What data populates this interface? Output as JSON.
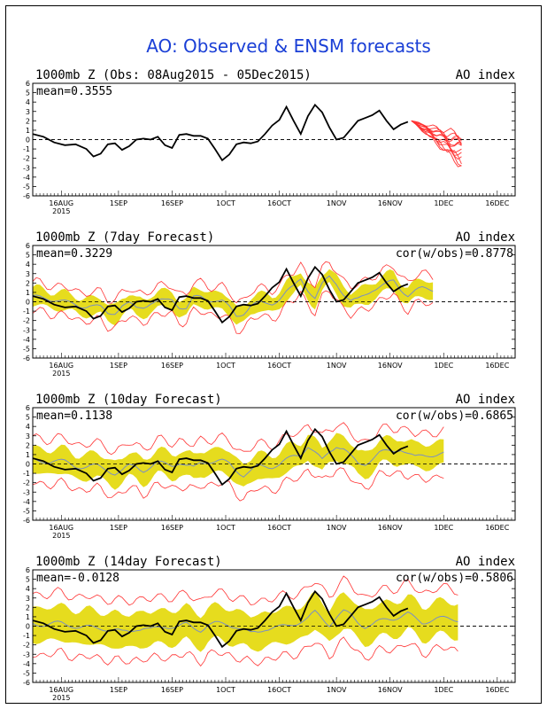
{
  "main_title": "AO: Observed & ENSM forecasts",
  "colors": {
    "title": "#1a3fd6",
    "observed": "#000000",
    "ensemble_members": "#ff3333",
    "ensemble_spread": "#e6dc1e",
    "ensemble_mean": "#7a8fc4"
  },
  "chart_data": [
    {
      "type": "line",
      "title": "1000mb Z (Obs: 08Aug2015 - 05Dec2015)",
      "right_label": "AO index",
      "stat_label": "mean=0.3555",
      "cor_label": "",
      "x_ticks": [
        "16AUG",
        "1SEP",
        "16SEP",
        "1OCT",
        "16OCT",
        "1NOV",
        "16NOV",
        "1DEC",
        "16DEC"
      ],
      "x_year_label": "2015",
      "y_ticks": [
        "6",
        "5",
        "4",
        "3",
        "2",
        "1",
        "0",
        "-1",
        "-2",
        "-3",
        "-4",
        "-5",
        "-6"
      ],
      "ylim": [
        -6,
        6
      ],
      "observed": [
        [
          0,
          0.6
        ],
        [
          3,
          0.3
        ],
        [
          6,
          -0.3
        ],
        [
          9,
          -0.6
        ],
        [
          12,
          -0.5
        ],
        [
          15,
          -1.0
        ],
        [
          17,
          -1.8
        ],
        [
          19,
          -1.5
        ],
        [
          21,
          -0.5
        ],
        [
          23,
          -0.4
        ],
        [
          25,
          -1.1
        ],
        [
          27,
          -0.7
        ],
        [
          29,
          0.0
        ],
        [
          31,
          0.1
        ],
        [
          33,
          0.0
        ],
        [
          35,
          0.3
        ],
        [
          37,
          -0.6
        ],
        [
          39,
          -0.9
        ],
        [
          41,
          0.5
        ],
        [
          43,
          0.6
        ],
        [
          45,
          0.4
        ],
        [
          47,
          0.4
        ],
        [
          49,
          0.1
        ],
        [
          51,
          -1.0
        ],
        [
          53,
          -2.2
        ],
        [
          55,
          -1.6
        ],
        [
          57,
          -0.5
        ],
        [
          59,
          -0.3
        ],
        [
          61,
          -0.4
        ],
        [
          63,
          -0.2
        ],
        [
          65,
          0.6
        ],
        [
          67,
          1.5
        ],
        [
          69,
          2.1
        ],
        [
          71,
          3.5
        ],
        [
          73,
          2.0
        ],
        [
          75,
          0.6
        ],
        [
          77,
          2.5
        ],
        [
          79,
          3.7
        ],
        [
          81,
          2.9
        ],
        [
          83,
          1.3
        ],
        [
          85,
          0.0
        ],
        [
          87,
          0.2
        ],
        [
          89,
          1.1
        ],
        [
          91,
          2.0
        ],
        [
          93,
          2.3
        ],
        [
          95,
          2.6
        ],
        [
          97,
          3.1
        ],
        [
          99,
          2.0
        ],
        [
          101,
          1.1
        ],
        [
          103,
          1.6
        ],
        [
          105,
          1.9
        ]
      ],
      "ens_start_day": 106,
      "ens_end_day": 120,
      "ens_start_value": 2.0,
      "ens_members_end_values": [
        -2.5,
        -2.0,
        -1.5,
        -1.0,
        -0.5,
        0.0,
        0.5,
        -2.8,
        -1.8,
        -0.8,
        -0.2,
        -2.2
      ]
    },
    {
      "type": "line",
      "title": "1000mb Z (7day Forecast)",
      "right_label": "AO index",
      "stat_label": "mean=0.3229",
      "cor_label": "cor(w/obs)=0.8778",
      "x_ticks": [
        "16AUG",
        "1SEP",
        "16SEP",
        "1OCT",
        "16OCT",
        "1NOV",
        "16NOV",
        "1DEC",
        "16DEC"
      ],
      "x_year_label": "2015",
      "y_ticks": [
        "6",
        "5",
        "4",
        "3",
        "2",
        "1",
        "0",
        "-1",
        "-2",
        "-3",
        "-4",
        "-5",
        "-6"
      ],
      "ylim": [
        -6,
        6
      ],
      "forecast_end_day": 112,
      "mean_ends_day": 112,
      "spread_half_width": 0.9,
      "outer_half_width": 1.5
    },
    {
      "type": "line",
      "title": "1000mb Z (10day Forecast)",
      "right_label": "AO index",
      "stat_label": "mean=0.1138",
      "cor_label": "cor(w/obs)=0.6865",
      "x_ticks": [
        "16AUG",
        "1SEP",
        "16SEP",
        "1OCT",
        "16OCT",
        "1NOV",
        "16NOV",
        "1DEC",
        "16DEC"
      ],
      "x_year_label": "2015",
      "y_ticks": [
        "6",
        "5",
        "4",
        "3",
        "2",
        "1",
        "0",
        "-1",
        "-2",
        "-3",
        "-4",
        "-5",
        "-6"
      ],
      "ylim": [
        -6,
        6
      ],
      "forecast_end_day": 115,
      "spread_half_width": 1.3,
      "outer_half_width": 2.4
    },
    {
      "type": "line",
      "title": "1000mb Z (14day Forecast)",
      "right_label": "AO index",
      "stat_label": "mean=-0.0128",
      "cor_label": "cor(w/obs)=0.5806",
      "x_ticks": [
        "16AUG",
        "1SEP",
        "16SEP",
        "1OCT",
        "16OCT",
        "1NOV",
        "16NOV",
        "1DEC",
        "16DEC"
      ],
      "x_year_label": "2015",
      "y_ticks": [
        "6",
        "5",
        "4",
        "3",
        "2",
        "1",
        "0",
        "-1",
        "-2",
        "-3",
        "-4",
        "-5",
        "-6"
      ],
      "ylim": [
        -6,
        6
      ],
      "forecast_end_day": 119,
      "spread_half_width": 1.8,
      "outer_half_width": 3.2
    }
  ]
}
